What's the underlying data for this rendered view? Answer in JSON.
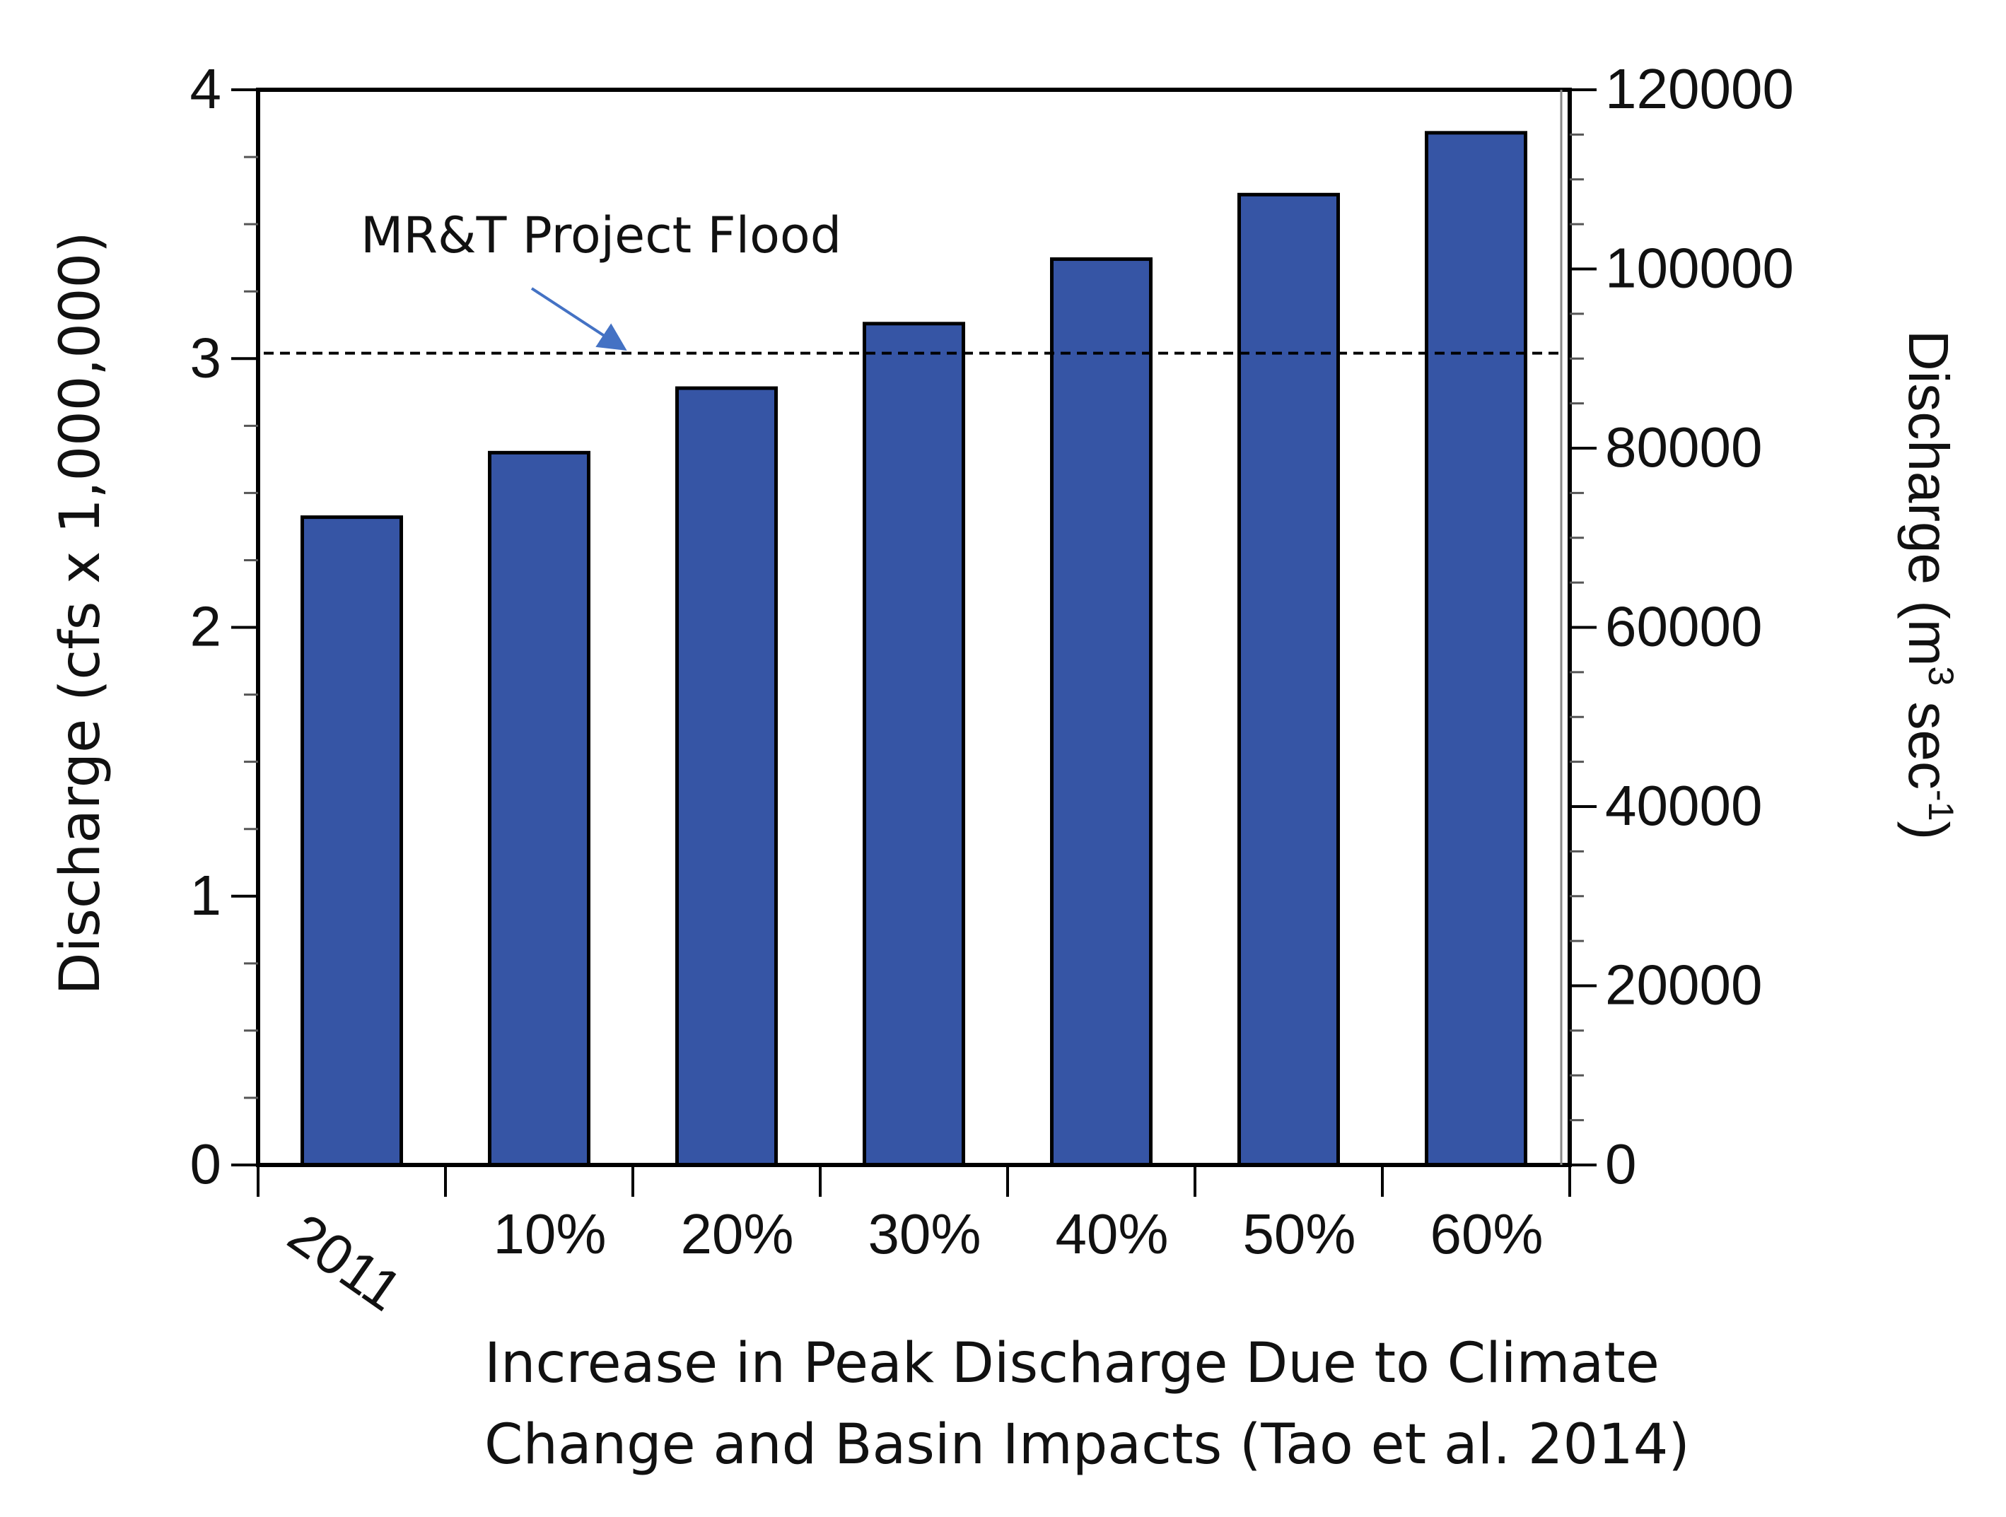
{
  "chart_data": {
    "type": "bar",
    "categories": [
      "2011",
      "10%",
      "20%",
      "30%",
      "40%",
      "50%",
      "60%"
    ],
    "values": [
      2.41,
      2.65,
      2.89,
      3.13,
      3.37,
      3.61,
      3.84
    ],
    "bar_color": "#3655a5",
    "ylim": [
      0,
      4
    ],
    "y_ticks": [
      "0",
      "1",
      "2",
      "3",
      "4"
    ],
    "ylabel": "Discharge (cfs x 1,000,000)",
    "y2lim": [
      0,
      120000
    ],
    "y2_ticks": [
      "0",
      "20000",
      "40000",
      "60000",
      "80000",
      "100000",
      "120000"
    ],
    "y2label_main": "Discharge  (m",
    "y2label_sup": "3",
    "y2label_mid": " sec",
    "y2label_sup2": "-1",
    "y2label_end": ")",
    "reference_line": {
      "value": 3.02,
      "label": "MR&T Project Flood",
      "color": "#000000",
      "arrow_color": "#4472c4"
    },
    "xlabel_line1": "Increase in Peak Discharge Due to Climate",
    "xlabel_line2": "Change and Basin Impacts (Tao et al. 2014)"
  }
}
